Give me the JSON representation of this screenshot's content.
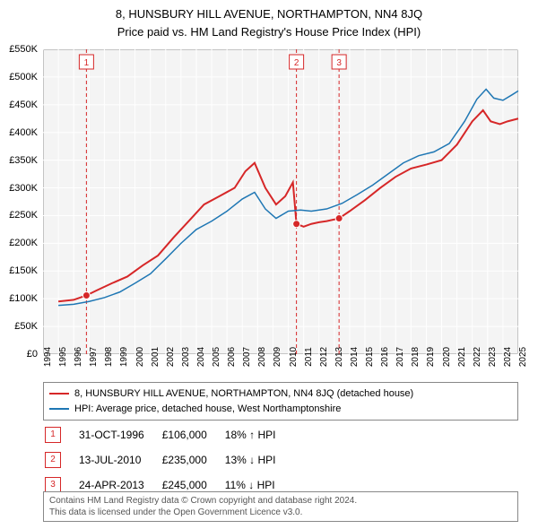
{
  "title": {
    "line1": "8, HUNSBURY HILL AVENUE, NORTHAMPTON, NN4 8JQ",
    "line2": "Price paid vs. HM Land Registry's House Price Index (HPI)"
  },
  "chart": {
    "type": "line",
    "background_color": "#f4f4f4",
    "grid_color": "#ffffff",
    "border_color": "#888888",
    "x": {
      "min": 1994,
      "max": 2025,
      "ticks": [
        1994,
        1995,
        1996,
        1997,
        1998,
        1999,
        2000,
        2001,
        2002,
        2003,
        2004,
        2005,
        2006,
        2007,
        2008,
        2009,
        2010,
        2011,
        2012,
        2013,
        2014,
        2015,
        2016,
        2017,
        2018,
        2019,
        2020,
        2021,
        2022,
        2023,
        2024,
        2025
      ]
    },
    "y": {
      "min": 0,
      "max": 550000,
      "ticks": [
        0,
        50000,
        100000,
        150000,
        200000,
        250000,
        300000,
        350000,
        400000,
        450000,
        500000,
        550000
      ],
      "tick_labels": [
        "£0",
        "£50K",
        "£100K",
        "£150K",
        "£200K",
        "£250K",
        "£300K",
        "£350K",
        "£400K",
        "£450K",
        "£500K",
        "£550K"
      ]
    },
    "series": [
      {
        "id": "property",
        "label": "8, HUNSBURY HILL AVENUE, NORTHAMPTON, NN4 8JQ (detached house)",
        "color": "#d62728",
        "width": 2,
        "points": [
          [
            1995.0,
            95000
          ],
          [
            1996.0,
            98000
          ],
          [
            1996.83,
            106000
          ],
          [
            1997.5,
            115000
          ],
          [
            1998.5,
            128000
          ],
          [
            1999.5,
            140000
          ],
          [
            2000.5,
            160000
          ],
          [
            2001.5,
            178000
          ],
          [
            2002.5,
            210000
          ],
          [
            2003.5,
            240000
          ],
          [
            2004.5,
            270000
          ],
          [
            2005.5,
            285000
          ],
          [
            2006.5,
            300000
          ],
          [
            2007.2,
            330000
          ],
          [
            2007.8,
            345000
          ],
          [
            2008.5,
            300000
          ],
          [
            2009.2,
            270000
          ],
          [
            2009.8,
            285000
          ],
          [
            2010.3,
            310000
          ],
          [
            2010.53,
            235000
          ],
          [
            2011.0,
            230000
          ],
          [
            2011.5,
            235000
          ],
          [
            2012.0,
            238000
          ],
          [
            2012.5,
            240000
          ],
          [
            2013.31,
            245000
          ],
          [
            2014.0,
            258000
          ],
          [
            2015.0,
            278000
          ],
          [
            2016.0,
            300000
          ],
          [
            2017.0,
            320000
          ],
          [
            2018.0,
            335000
          ],
          [
            2019.0,
            342000
          ],
          [
            2020.0,
            350000
          ],
          [
            2021.0,
            378000
          ],
          [
            2022.0,
            420000
          ],
          [
            2022.7,
            440000
          ],
          [
            2023.2,
            420000
          ],
          [
            2023.8,
            415000
          ],
          [
            2024.3,
            420000
          ],
          [
            2025.0,
            425000
          ]
        ]
      },
      {
        "id": "hpi",
        "label": "HPI: Average price, detached house, West Northamptonshire",
        "color": "#1f77b4",
        "width": 1.5,
        "points": [
          [
            1995.0,
            88000
          ],
          [
            1996.0,
            90000
          ],
          [
            1997.0,
            95000
          ],
          [
            1998.0,
            102000
          ],
          [
            1999.0,
            112000
          ],
          [
            2000.0,
            128000
          ],
          [
            2001.0,
            145000
          ],
          [
            2002.0,
            172000
          ],
          [
            2003.0,
            200000
          ],
          [
            2004.0,
            225000
          ],
          [
            2005.0,
            240000
          ],
          [
            2006.0,
            258000
          ],
          [
            2007.0,
            280000
          ],
          [
            2007.8,
            292000
          ],
          [
            2008.5,
            262000
          ],
          [
            2009.2,
            245000
          ],
          [
            2010.0,
            258000
          ],
          [
            2010.8,
            260000
          ],
          [
            2011.5,
            258000
          ],
          [
            2012.5,
            262000
          ],
          [
            2013.5,
            272000
          ],
          [
            2014.5,
            288000
          ],
          [
            2015.5,
            305000
          ],
          [
            2016.5,
            325000
          ],
          [
            2017.5,
            345000
          ],
          [
            2018.5,
            358000
          ],
          [
            2019.5,
            365000
          ],
          [
            2020.5,
            380000
          ],
          [
            2021.5,
            420000
          ],
          [
            2022.3,
            460000
          ],
          [
            2022.9,
            478000
          ],
          [
            2023.4,
            462000
          ],
          [
            2024.0,
            458000
          ],
          [
            2024.6,
            468000
          ],
          [
            2025.0,
            475000
          ]
        ]
      }
    ],
    "event_lines": {
      "color": "#d62728",
      "dash": "4,3",
      "positions": [
        1996.83,
        2010.53,
        2013.31
      ]
    },
    "event_markers": [
      {
        "n": "1",
        "x": 1996.83,
        "y": 106000
      },
      {
        "n": "2",
        "x": 2010.53,
        "y": 235000
      },
      {
        "n": "3",
        "x": 2013.31,
        "y": 245000
      }
    ]
  },
  "events": [
    {
      "n": "1",
      "date": "31-OCT-1996",
      "price": "£106,000",
      "delta": "18% ↑ HPI"
    },
    {
      "n": "2",
      "date": "13-JUL-2010",
      "price": "£235,000",
      "delta": "13% ↓ HPI"
    },
    {
      "n": "3",
      "date": "24-APR-2013",
      "price": "£245,000",
      "delta": "11% ↓ HPI"
    }
  ],
  "footer": {
    "line1": "Contains HM Land Registry data © Crown copyright and database right 2024.",
    "line2": "This data is licensed under the Open Government Licence v3.0."
  }
}
